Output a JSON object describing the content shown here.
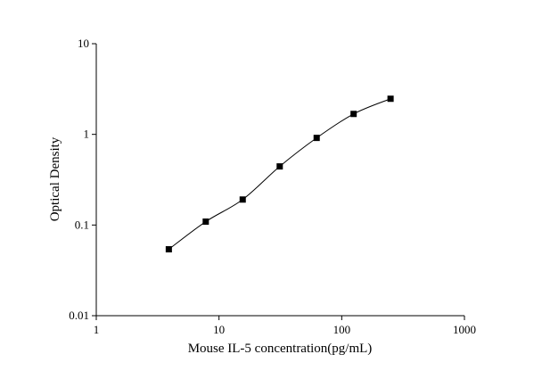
{
  "chart_data": {
    "type": "scatter",
    "x_label": "Mouse IL-5 concentration(pg/mL)",
    "y_label": "Optical Density",
    "x": [
      3.9,
      7.8,
      15.6,
      31.25,
      62.5,
      125,
      250
    ],
    "series": [
      {
        "color": "#000000",
        "values": [
          0.054,
          0.109,
          0.191,
          0.443,
          0.914,
          1.68,
          2.47
        ]
      }
    ],
    "xlim": [
      1,
      1000
    ],
    "ylim": [
      0.01,
      10
    ],
    "xticks": [
      1,
      10,
      100,
      1000
    ],
    "yticks": [
      0.01,
      0.1,
      1,
      10
    ],
    "xscale": "log",
    "yscale": "log",
    "fit_line": true
  }
}
